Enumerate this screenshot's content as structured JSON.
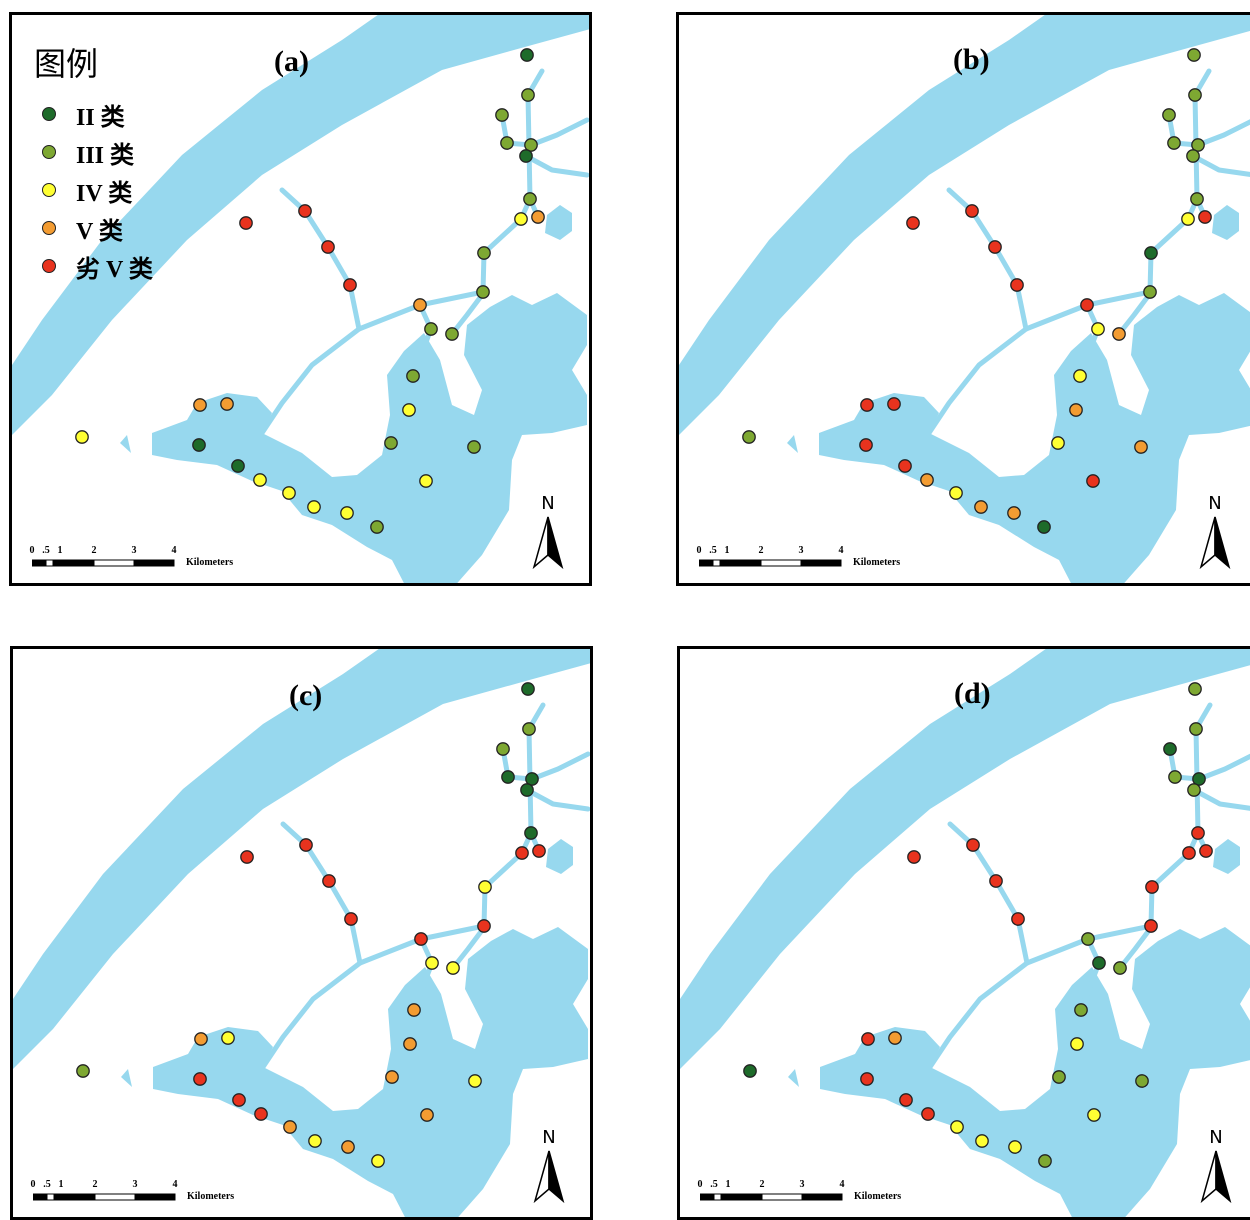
{
  "legend": {
    "title": "图例",
    "items": [
      {
        "label": "II 类",
        "color": "#1e6b2a"
      },
      {
        "label": "III 类",
        "color": "#7ea832"
      },
      {
        "label": "IV 类",
        "color": "#ffff33"
      },
      {
        "label": "V 类",
        "color": "#f39c32"
      },
      {
        "label": "劣 V 类",
        "color": "#e8331e"
      }
    ]
  },
  "colors": {
    "water": "#97d8ee",
    "frame": "#000000",
    "II": "#1e6b2a",
    "III": "#7ea832",
    "IV": "#ffff33",
    "V": "#f39c32",
    "劣V": "#e8331e"
  },
  "scalebar": {
    "ticks": [
      "0",
      ".5",
      "1",
      "2",
      "3",
      "4"
    ],
    "unit": "Kilometers"
  },
  "north_label": "N",
  "panels": [
    {
      "label": "(a)",
      "classes": [
        "II",
        "III",
        "III",
        "III",
        "III",
        "II",
        "III",
        "IV",
        "V",
        "III",
        "III",
        "V",
        "III",
        "III",
        "III",
        "IV",
        "III",
        "III",
        "IV",
        "V",
        "V",
        "II",
        "II",
        "IV",
        "IV",
        "IV",
        "IV",
        "III",
        "IV",
        "劣V",
        "劣V",
        "劣V",
        "劣V"
      ]
    },
    {
      "label": "(b)",
      "classes": [
        "III",
        "III",
        "III",
        "III",
        "III",
        "III",
        "III",
        "IV",
        "劣V",
        "II",
        "III",
        "劣V",
        "IV",
        "V",
        "IV",
        "V",
        "IV",
        "V",
        "劣V",
        "劣V",
        "劣V",
        "劣V",
        "劣V",
        "V",
        "IV",
        "V",
        "V",
        "II",
        "III",
        "劣V",
        "劣V",
        "劣V",
        "劣V"
      ]
    },
    {
      "label": "(c)",
      "classes": [
        "II",
        "III",
        "III",
        "II",
        "II",
        "II",
        "II",
        "劣V",
        "劣V",
        "IV",
        "劣V",
        "劣V",
        "IV",
        "IV",
        "V",
        "V",
        "V",
        "IV",
        "V",
        "V",
        "IV",
        "劣V",
        "劣V",
        "劣V",
        "V",
        "IV",
        "V",
        "IV",
        "III",
        "劣V",
        "劣V",
        "劣V",
        "劣V"
      ]
    },
    {
      "label": "(d)",
      "classes": [
        "III",
        "III",
        "II",
        "III",
        "II",
        "III",
        "劣V",
        "劣V",
        "劣V",
        "劣V",
        "劣V",
        "III",
        "II",
        "III",
        "III",
        "IV",
        "III",
        "III",
        "IV",
        "劣V",
        "V",
        "劣V",
        "劣V",
        "劣V",
        "IV",
        "IV",
        "IV",
        "III",
        "II",
        "劣V",
        "劣V",
        "劣V",
        "劣V"
      ]
    }
  ]
}
